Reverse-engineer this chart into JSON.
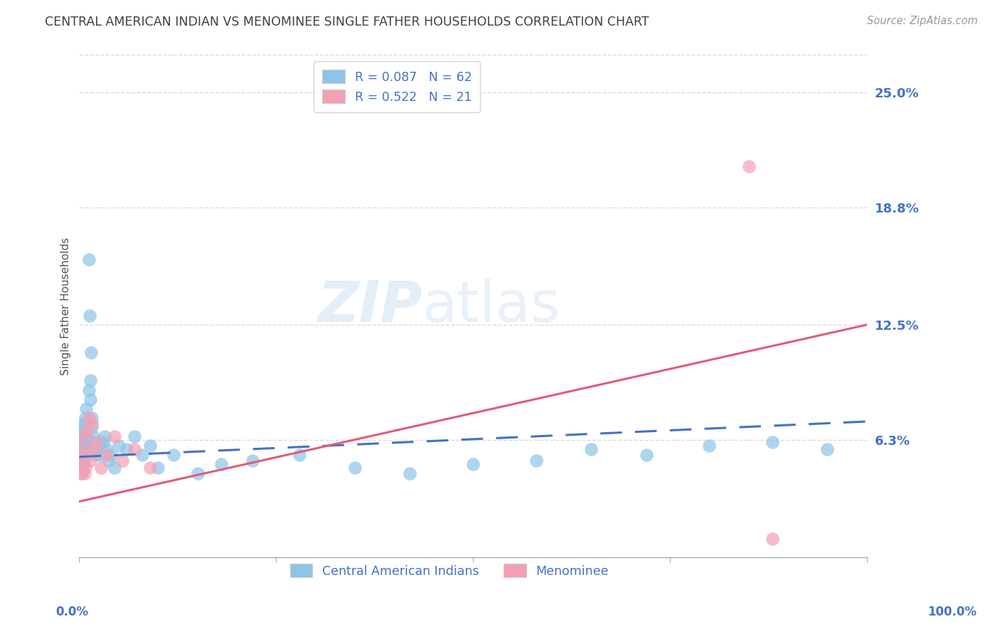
{
  "title": "CENTRAL AMERICAN INDIAN VS MENOMINEE SINGLE FATHER HOUSEHOLDS CORRELATION CHART",
  "source": "Source: ZipAtlas.com",
  "ylabel": "Single Father Households",
  "ytick_labels": [
    "25.0%",
    "18.8%",
    "12.5%",
    "6.3%"
  ],
  "ytick_values": [
    0.25,
    0.188,
    0.125,
    0.063
  ],
  "xlim": [
    0.0,
    1.0
  ],
  "ylim": [
    0.0,
    0.27
  ],
  "color_blue": "#8ec4e8",
  "color_pink": "#f4a0b5",
  "color_line_blue": "#4472c4",
  "color_line_pink": "#e05c78",
  "color_axis_labels": "#4472c4",
  "color_title": "#404040",
  "color_source": "#999999",
  "blue_x": [
    0.002,
    0.003,
    0.001,
    0.003,
    0.002,
    0.004,
    0.003,
    0.005,
    0.004,
    0.005,
    0.006,
    0.004,
    0.006,
    0.005,
    0.007,
    0.006,
    0.008,
    0.007,
    0.009,
    0.008,
    0.01,
    0.009,
    0.011,
    0.012,
    0.013,
    0.014,
    0.015,
    0.016,
    0.012,
    0.014,
    0.016,
    0.018,
    0.02,
    0.022,
    0.025,
    0.027,
    0.03,
    0.032,
    0.035,
    0.038,
    0.04,
    0.045,
    0.05,
    0.06,
    0.07,
    0.08,
    0.09,
    0.1,
    0.12,
    0.15,
    0.18,
    0.22,
    0.28,
    0.35,
    0.42,
    0.5,
    0.58,
    0.65,
    0.72,
    0.8,
    0.88,
    0.95
  ],
  "blue_y": [
    0.055,
    0.06,
    0.045,
    0.065,
    0.05,
    0.058,
    0.07,
    0.062,
    0.048,
    0.055,
    0.058,
    0.072,
    0.063,
    0.05,
    0.068,
    0.052,
    0.075,
    0.06,
    0.055,
    0.065,
    0.058,
    0.08,
    0.064,
    0.16,
    0.13,
    0.095,
    0.11,
    0.075,
    0.09,
    0.085,
    0.07,
    0.065,
    0.055,
    0.058,
    0.06,
    0.055,
    0.062,
    0.065,
    0.058,
    0.052,
    0.055,
    0.048,
    0.06,
    0.058,
    0.065,
    0.055,
    0.06,
    0.048,
    0.055,
    0.045,
    0.05,
    0.052,
    0.055,
    0.048,
    0.045,
    0.05,
    0.052,
    0.058,
    0.055,
    0.06,
    0.062,
    0.058
  ],
  "pink_x": [
    0.002,
    0.003,
    0.004,
    0.005,
    0.006,
    0.007,
    0.008,
    0.01,
    0.012,
    0.014,
    0.016,
    0.018,
    0.022,
    0.028,
    0.035,
    0.045,
    0.055,
    0.07,
    0.09,
    0.85,
    0.88
  ],
  "pink_y": [
    0.05,
    0.045,
    0.055,
    0.065,
    0.058,
    0.045,
    0.048,
    0.068,
    0.075,
    0.052,
    0.072,
    0.058,
    0.062,
    0.048,
    0.055,
    0.065,
    0.052,
    0.058,
    0.048,
    0.21,
    0.01
  ],
  "blue_trend_x": [
    0.0,
    1.0
  ],
  "blue_trend_y": [
    0.054,
    0.073
  ],
  "pink_trend_x": [
    0.0,
    1.0
  ],
  "pink_trend_y": [
    0.03,
    0.125
  ],
  "watermark_zip": "ZIP",
  "watermark_atlas": "atlas",
  "grid_color": "#d8d8d8",
  "background_color": "#ffffff"
}
